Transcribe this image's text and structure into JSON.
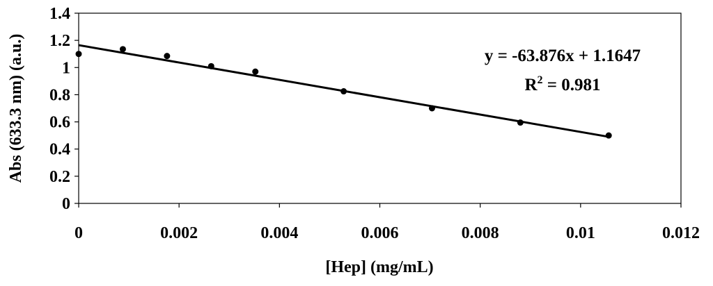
{
  "chart_data": {
    "type": "scatter",
    "xlabel": "[Hep] (mg/mL)",
    "ylabel": "Abs (633.3 nm) (a.u.)",
    "xlim": [
      0,
      0.012
    ],
    "ylim": [
      0,
      1.4
    ],
    "x_ticks": [
      0,
      0.002,
      0.004,
      0.006,
      0.008,
      0.01,
      0.012
    ],
    "x_tick_labels": [
      "0",
      "0.002",
      "0.004",
      "0.006",
      "0.008",
      "0.01",
      "0.012"
    ],
    "y_ticks": [
      0,
      0.2,
      0.4,
      0.6,
      0.8,
      1,
      1.2,
      1.4
    ],
    "y_tick_labels": [
      "0",
      "0.2",
      "0.4",
      "0.6",
      "0.8",
      "1",
      "1.2",
      "1.4"
    ],
    "grid": false,
    "legend": "none",
    "series": [
      {
        "x": [
          0,
          0.00088,
          0.00176,
          0.00264,
          0.00352,
          0.00528,
          0.00704,
          0.0088,
          0.01056
        ],
        "y": [
          1.1,
          1.135,
          1.085,
          1.01,
          0.97,
          0.825,
          0.7,
          0.595,
          0.5
        ],
        "color": "#000000"
      }
    ],
    "trendline": {
      "type": "linear",
      "slope": -63.876,
      "intercept": 1.1647,
      "x_range": [
        0,
        0.01056
      ],
      "equation_text": "y = -63.876x + 1.1647",
      "r2_prefix": "R",
      "r2_superscript": "2",
      "r2_value": " = 0.981"
    }
  }
}
